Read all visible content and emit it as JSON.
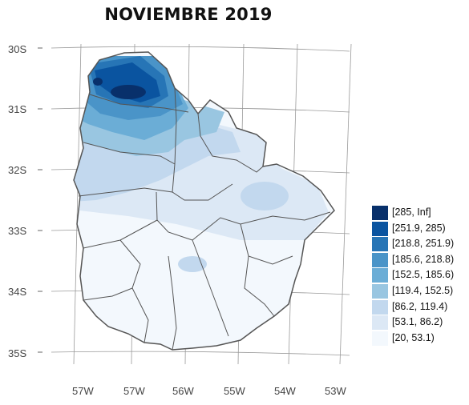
{
  "title": "NOVIEMBRE 2019",
  "axes": {
    "y_ticks": [
      "30S",
      "31S",
      "32S",
      "33S",
      "34S",
      "35S"
    ],
    "x_ticks": [
      "57W",
      "57W",
      "56W",
      "55W",
      "54W",
      "53W"
    ]
  },
  "legend": [
    {
      "label": "[285, Inf]",
      "color": "#08306b"
    },
    {
      "label": "[251.9, 285)",
      "color": "#0a54a0"
    },
    {
      "label": "[218.8, 251.9)",
      "color": "#2775b6"
    },
    {
      "label": "[185.6, 218.8)",
      "color": "#4a94c8"
    },
    {
      "label": "[152.5, 185.6)",
      "color": "#6badd6"
    },
    {
      "label": "[119.4, 152.5)",
      "color": "#99c6e1"
    },
    {
      "label": "[86.2, 119.4)",
      "color": "#c2d8ee"
    },
    {
      "label": "[53.1, 86.2)",
      "color": "#dce8f5"
    },
    {
      "label": "[20, 53.1)",
      "color": "#f3f8fd"
    }
  ]
}
